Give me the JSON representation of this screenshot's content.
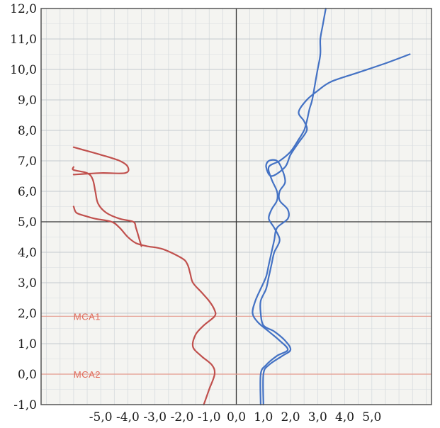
{
  "chart_data": {
    "type": "line",
    "title": "",
    "xlabel": "",
    "ylabel": "",
    "xlim": [
      -7.2,
      7.2
    ],
    "ylim": [
      -1.0,
      12.0
    ],
    "x_ticks": [
      "-5,0",
      "-4,0",
      "-3,0",
      "-2,0",
      "-1,0",
      "0,0",
      "1,0",
      "2,0",
      "3,0",
      "4,0",
      "5,0"
    ],
    "y_ticks": [
      "-1,0",
      "0,0",
      "1,0",
      "2,0",
      "3,0",
      "4,0",
      "5,0",
      "6,0",
      "7,0",
      "8,0",
      "9,0",
      "10,0",
      "11,0",
      "12,0"
    ],
    "grid": true,
    "annotations": [
      {
        "text": "MCA1",
        "x": -6.0,
        "y": 1.9
      },
      {
        "text": "MCA2",
        "x": -6.0,
        "y": 0.0
      }
    ],
    "series": [
      {
        "color": "#c0504d",
        "points": [
          [
            -1.2,
            -1.0
          ],
          [
            -1.0,
            -0.5
          ],
          [
            -0.8,
            0.0
          ],
          [
            -0.9,
            0.3
          ],
          [
            -1.3,
            0.6
          ],
          [
            -1.6,
            0.9
          ],
          [
            -1.5,
            1.3
          ],
          [
            -1.2,
            1.6
          ],
          [
            -0.8,
            1.9
          ],
          [
            -0.8,
            2.1
          ],
          [
            -1.0,
            2.4
          ],
          [
            -1.3,
            2.7
          ],
          [
            -1.6,
            3.0
          ],
          [
            -1.7,
            3.3
          ],
          [
            -1.8,
            3.6
          ],
          [
            -2.0,
            3.8
          ],
          [
            -2.7,
            4.1
          ],
          [
            -3.3,
            4.2
          ],
          [
            -3.7,
            4.3
          ],
          [
            -4.0,
            4.5
          ],
          [
            -4.3,
            4.8
          ],
          [
            -4.6,
            5.0
          ],
          [
            -5.2,
            5.1
          ],
          [
            -5.6,
            5.2
          ],
          [
            -5.9,
            5.3
          ],
          [
            -6.0,
            5.5
          ]
        ]
      },
      {
        "color": "#c0504d",
        "points": [
          [
            -3.5,
            4.2
          ],
          [
            -3.6,
            4.5
          ],
          [
            -3.7,
            4.8
          ],
          [
            -3.8,
            5.0
          ],
          [
            -4.3,
            5.1
          ],
          [
            -4.8,
            5.3
          ],
          [
            -5.1,
            5.6
          ],
          [
            -5.2,
            6.0
          ],
          [
            -5.3,
            6.4
          ],
          [
            -5.5,
            6.6
          ],
          [
            -6.0,
            6.7
          ],
          [
            -6.0,
            6.8
          ]
        ]
      },
      {
        "color": "#c0504d",
        "points": [
          [
            -6.0,
            6.55
          ],
          [
            -5.0,
            6.6
          ],
          [
            -4.1,
            6.6
          ],
          [
            -4.0,
            6.8
          ],
          [
            -4.3,
            7.0
          ],
          [
            -5.0,
            7.2
          ],
          [
            -5.6,
            7.35
          ],
          [
            -6.0,
            7.45
          ]
        ]
      },
      {
        "color": "#4472c4",
        "points": [
          [
            0.9,
            -1.0
          ],
          [
            0.9,
            0.0
          ],
          [
            1.1,
            0.3
          ],
          [
            1.5,
            0.6
          ],
          [
            1.9,
            0.8
          ],
          [
            1.6,
            1.1
          ],
          [
            1.2,
            1.4
          ],
          [
            0.8,
            1.7
          ],
          [
            0.6,
            2.0
          ],
          [
            0.7,
            2.4
          ],
          [
            0.9,
            2.8
          ],
          [
            1.1,
            3.2
          ],
          [
            1.2,
            3.6
          ],
          [
            1.3,
            4.0
          ],
          [
            1.4,
            4.4
          ],
          [
            1.5,
            4.8
          ],
          [
            1.9,
            5.1
          ],
          [
            1.9,
            5.4
          ],
          [
            1.6,
            5.7
          ],
          [
            1.6,
            6.0
          ],
          [
            1.8,
            6.3
          ],
          [
            1.7,
            6.7
          ],
          [
            1.5,
            7.0
          ],
          [
            1.2,
            7.0
          ],
          [
            1.1,
            6.8
          ],
          [
            1.3,
            6.5
          ],
          [
            1.8,
            6.8
          ],
          [
            2.0,
            7.2
          ],
          [
            2.3,
            7.6
          ],
          [
            2.6,
            8.0
          ],
          [
            2.5,
            8.3
          ],
          [
            2.3,
            8.6
          ],
          [
            2.6,
            9.0
          ],
          [
            3.0,
            9.3
          ],
          [
            3.5,
            9.6
          ],
          [
            4.5,
            9.9
          ],
          [
            5.5,
            10.2
          ],
          [
            6.4,
            10.5
          ]
        ]
      },
      {
        "color": "#4472c4",
        "points": [
          [
            1.0,
            -1.0
          ],
          [
            1.0,
            0.0
          ],
          [
            1.2,
            0.3
          ],
          [
            1.7,
            0.6
          ],
          [
            2.0,
            0.8
          ],
          [
            1.8,
            1.1
          ],
          [
            1.4,
            1.4
          ],
          [
            1.0,
            1.6
          ],
          [
            0.9,
            2.0
          ],
          [
            0.9,
            2.4
          ],
          [
            1.1,
            2.8
          ],
          [
            1.2,
            3.2
          ],
          [
            1.3,
            3.6
          ],
          [
            1.4,
            4.0
          ],
          [
            1.6,
            4.4
          ],
          [
            1.4,
            4.8
          ],
          [
            1.2,
            5.1
          ],
          [
            1.3,
            5.4
          ],
          [
            1.5,
            5.7
          ],
          [
            1.5,
            6.0
          ],
          [
            1.3,
            6.4
          ],
          [
            1.2,
            6.8
          ],
          [
            1.6,
            7.0
          ],
          [
            2.0,
            7.3
          ],
          [
            2.3,
            7.7
          ],
          [
            2.5,
            8.0
          ],
          [
            2.6,
            8.3
          ],
          [
            2.7,
            8.7
          ],
          [
            2.8,
            9.0
          ],
          [
            2.9,
            9.5
          ],
          [
            3.0,
            10.0
          ],
          [
            3.1,
            10.5
          ],
          [
            3.1,
            11.0
          ],
          [
            3.2,
            11.5
          ],
          [
            3.3,
            12.0
          ]
        ]
      }
    ]
  }
}
